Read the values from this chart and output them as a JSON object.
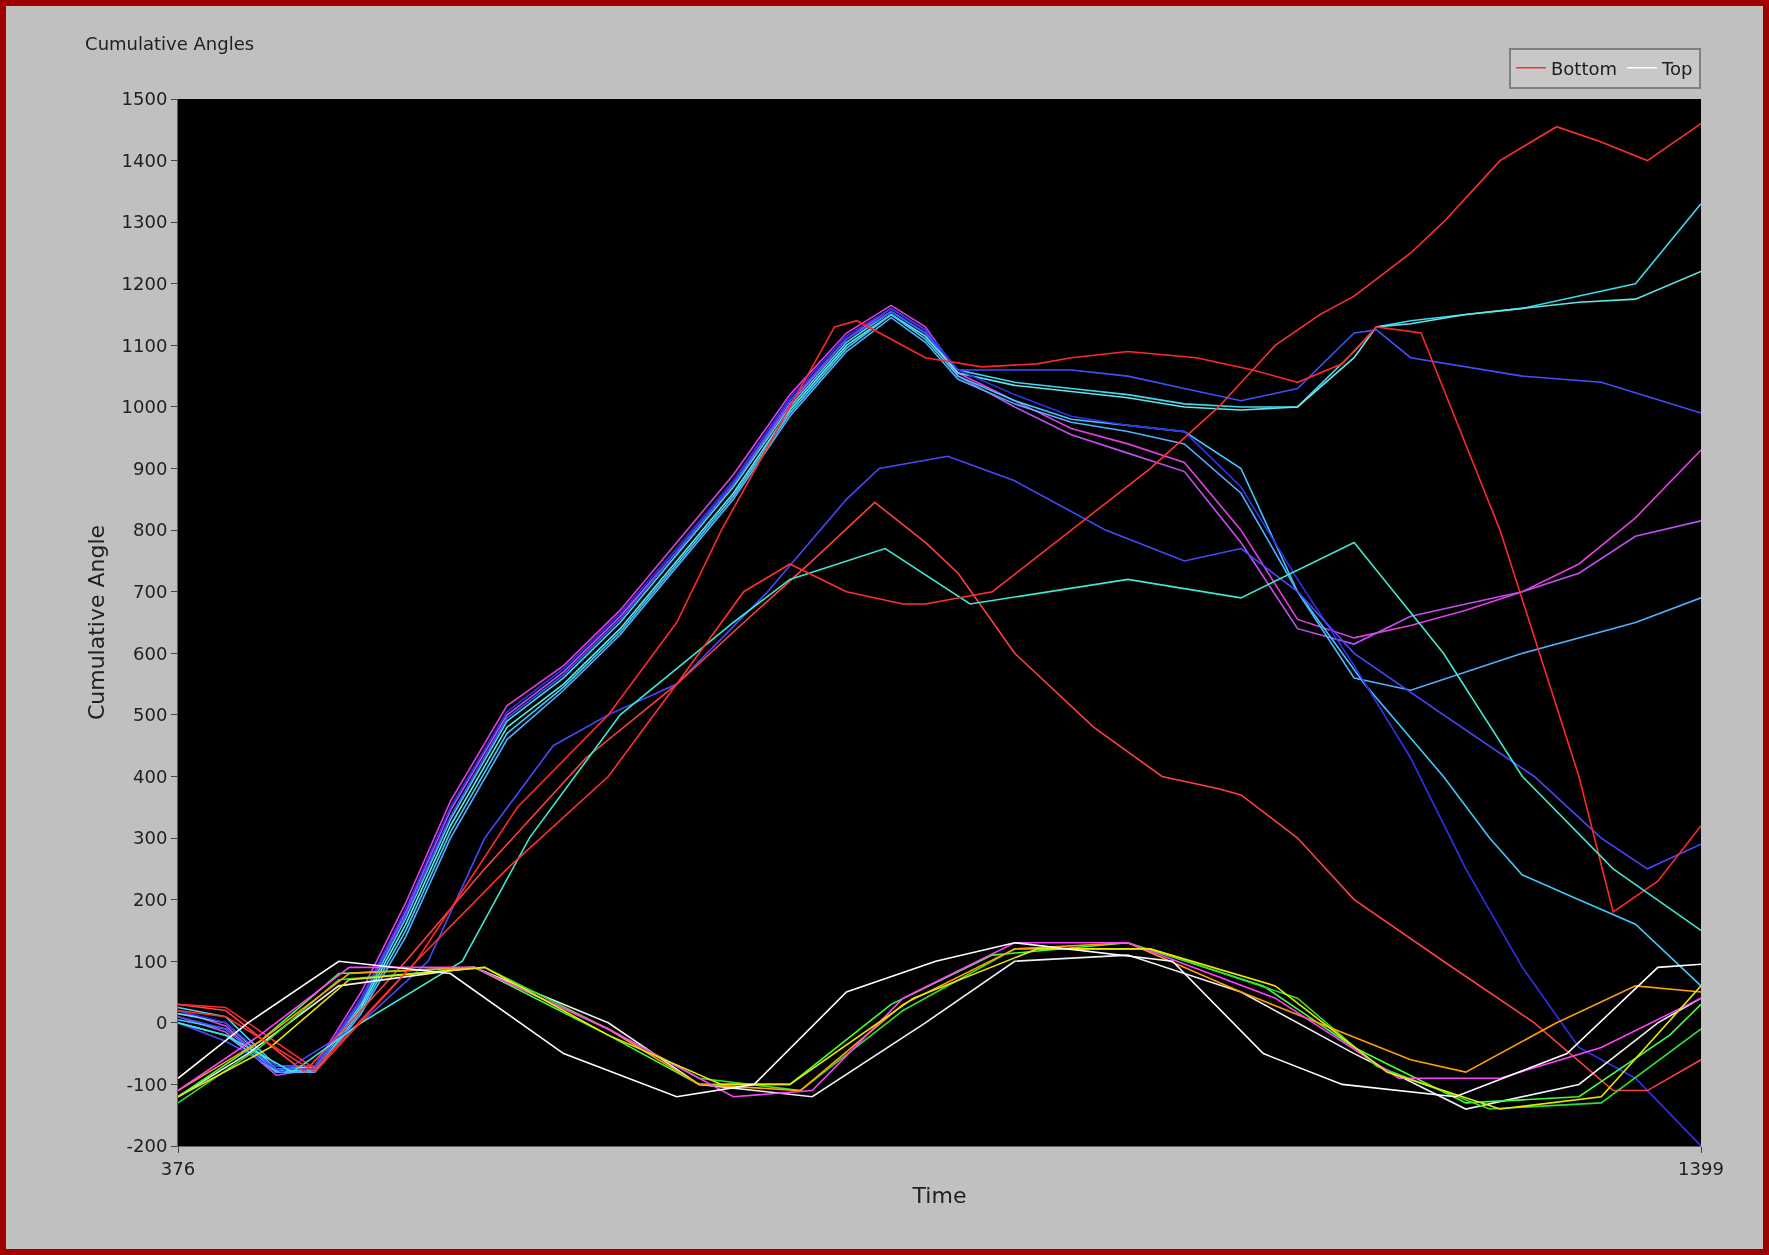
{
  "chart_data": {
    "type": "line",
    "title": "Cumulative Angles",
    "xlabel": "Time",
    "ylabel": "Cumulative Angle",
    "xlim": [
      376,
      1399
    ],
    "xticks": [
      376,
      1399
    ],
    "ylim": [
      -200,
      1500
    ],
    "yticks": [
      -200,
      -100,
      0,
      100,
      200,
      300,
      400,
      500,
      600,
      700,
      800,
      900,
      1000,
      1100,
      1200,
      1300,
      1400,
      1500
    ],
    "grid": false,
    "legend": "top right",
    "series": [
      {
        "color": "#e040e0",
        "x": [
          376,
          408,
          442,
          468,
          499,
          529,
          559,
          597,
          635,
          673,
          711,
          749,
          787,
          825,
          855,
          878,
          900,
          938,
          976,
          1014,
          1052,
          1090,
          1128,
          1166,
          1204,
          1241,
          1279,
          1317,
          1355,
          1399
        ],
        "values": [
          20,
          -5,
          -80,
          -70,
          50,
          195,
          360,
          515,
          580,
          670,
          780,
          890,
          1020,
          1120,
          1165,
          1130,
          1055,
          1010,
          965,
          940,
          910,
          800,
          655,
          625,
          645,
          670,
          700,
          745,
          820,
          930
        ]
      },
      {
        "color": "#c050f0",
        "x": [
          376,
          408,
          442,
          468,
          499,
          529,
          559,
          597,
          635,
          673,
          711,
          749,
          787,
          825,
          855,
          878,
          900,
          938,
          976,
          1014,
          1052,
          1090,
          1128,
          1166,
          1204,
          1241,
          1279,
          1317,
          1355,
          1399
        ],
        "values": [
          10,
          -15,
          -85,
          -75,
          40,
          180,
          345,
          500,
          570,
          660,
          765,
          875,
          1005,
          1110,
          1160,
          1125,
          1050,
          1000,
          955,
          925,
          895,
          780,
          640,
          615,
          660,
          680,
          700,
          730,
          790,
          815
        ]
      },
      {
        "color": "#40d8f0",
        "x": [
          376,
          408,
          442,
          468,
          499,
          529,
          559,
          597,
          635,
          673,
          711,
          749,
          787,
          825,
          855,
          878,
          900,
          938,
          976,
          1014,
          1052,
          1090,
          1128,
          1166,
          1181,
          1204,
          1241,
          1279,
          1317,
          1355,
          1399
        ],
        "values": [
          25,
          10,
          -70,
          -70,
          30,
          170,
          330,
          490,
          560,
          650,
          760,
          870,
          1000,
          1105,
          1155,
          1120,
          1060,
          1040,
          1030,
          1020,
          1005,
          1000,
          1000,
          1090,
          1130,
          1140,
          1150,
          1160,
          1180,
          1200,
          1330
        ]
      },
      {
        "color": "#60e8e8",
        "x": [
          376,
          408,
          442,
          468,
          499,
          529,
          559,
          597,
          635,
          673,
          711,
          749,
          787,
          825,
          855,
          878,
          900,
          938,
          976,
          1014,
          1052,
          1090,
          1128,
          1166,
          1181,
          1204,
          1241,
          1279,
          1317,
          1355,
          1399
        ],
        "values": [
          15,
          0,
          -75,
          -72,
          25,
          160,
          320,
          480,
          550,
          640,
          750,
          860,
          995,
          1100,
          1150,
          1115,
          1055,
          1035,
          1025,
          1015,
          1000,
          995,
          1000,
          1080,
          1130,
          1135,
          1150,
          1160,
          1170,
          1175,
          1220
        ]
      },
      {
        "color": "#40c8ff",
        "x": [
          376,
          408,
          442,
          468,
          499,
          529,
          559,
          597,
          635,
          673,
          711,
          749,
          787,
          825,
          855,
          878,
          900,
          938,
          976,
          1014,
          1052,
          1090,
          1128,
          1173,
          1226,
          1257,
          1279,
          1317,
          1355,
          1399
        ],
        "values": [
          5,
          -10,
          -78,
          -78,
          20,
          150,
          310,
          470,
          545,
          635,
          745,
          855,
          990,
          1095,
          1150,
          1110,
          1050,
          1010,
          980,
          970,
          960,
          900,
          700,
          550,
          400,
          300,
          240,
          200,
          160,
          60
        ]
      },
      {
        "color": "#50b0ff",
        "x": [
          376,
          408,
          442,
          468,
          499,
          529,
          559,
          597,
          635,
          673,
          711,
          749,
          787,
          825,
          855,
          878,
          900,
          938,
          976,
          1014,
          1052,
          1090,
          1128,
          1166,
          1204,
          1279,
          1355,
          1399
        ],
        "values": [
          0,
          -20,
          -80,
          -80,
          15,
          140,
          300,
          460,
          540,
          630,
          740,
          850,
          985,
          1090,
          1145,
          1105,
          1045,
          1005,
          975,
          960,
          940,
          860,
          700,
          560,
          540,
          600,
          650,
          690
        ]
      },
      {
        "color": "#4050ff",
        "x": [
          376,
          408,
          442,
          468,
          499,
          529,
          559,
          597,
          635,
          673,
          711,
          749,
          787,
          825,
          855,
          878,
          900,
          938,
          976,
          1014,
          1052,
          1090,
          1128,
          1166,
          1181,
          1204,
          1279,
          1332,
          1399
        ],
        "values": [
          10,
          -10,
          -75,
          -75,
          35,
          175,
          335,
          495,
          565,
          655,
          765,
          875,
          1010,
          1110,
          1155,
          1120,
          1060,
          1060,
          1060,
          1050,
          1030,
          1010,
          1030,
          1120,
          1125,
          1080,
          1050,
          1040,
          990
        ]
      },
      {
        "color": "#3030f0",
        "x": [
          376,
          408,
          442,
          468,
          499,
          529,
          559,
          597,
          635,
          673,
          711,
          749,
          787,
          825,
          855,
          878,
          900,
          938,
          976,
          1014,
          1052,
          1090,
          1128,
          1166,
          1204,
          1241,
          1279,
          1317,
          1355,
          1399
        ],
        "values": [
          20,
          0,
          -70,
          -70,
          40,
          185,
          350,
          505,
          575,
          665,
          770,
          880,
          1015,
          1115,
          1160,
          1125,
          1060,
          1020,
          985,
          970,
          960,
          870,
          720,
          580,
          430,
          250,
          90,
          -40,
          -90,
          -200
        ]
      },
      {
        "color": "#4848ff",
        "x": [
          376,
          408,
          446,
          499,
          544,
          582,
          628,
          665,
          711,
          772,
          825,
          847,
          893,
          938,
          999,
          1052,
          1090,
          1128,
          1166,
          1226,
          1287,
          1332,
          1363,
          1399
        ],
        "values": [
          0,
          -30,
          -80,
          0,
          100,
          300,
          450,
          500,
          550,
          700,
          850,
          900,
          920,
          880,
          800,
          750,
          770,
          700,
          600,
          500,
          400,
          300,
          250,
          290
        ]
      },
      {
        "name": "Bottom",
        "color": "#ff3030",
        "x": [
          376,
          408,
          468,
          536,
          597,
          665,
          711,
          756,
          787,
          825,
          863,
          878,
          923,
          976,
          1029,
          1075,
          1113,
          1143,
          1166,
          1204,
          1226,
          1264,
          1302,
          1332,
          1363,
          1399
        ],
        "values": [
          20,
          10,
          -80,
          100,
          250,
          400,
          550,
          700,
          745,
          700,
          680,
          680,
          700,
          800,
          900,
          1000,
          1100,
          1150,
          1180,
          1250,
          1300,
          1400,
          1455,
          1430,
          1400,
          1460
        ]
      },
      {
        "color": "#ff4040",
        "x": [
          376,
          408,
          461,
          529,
          582,
          650,
          711,
          756,
          802,
          844,
          878,
          900,
          938,
          991,
          1037,
          1075,
          1090,
          1128,
          1166,
          1226,
          1287,
          1340,
          1363,
          1399
        ],
        "values": [
          30,
          20,
          -80,
          100,
          250,
          430,
          550,
          650,
          750,
          845,
          780,
          730,
          600,
          480,
          400,
          380,
          370,
          300,
          200,
          100,
          0,
          -110,
          -110,
          -60
        ]
      },
      {
        "color": "#ff2828",
        "x": [
          376,
          408,
          468,
          536,
          604,
          665,
          711,
          741,
          787,
          817,
          832,
          878,
          916,
          953,
          976,
          1014,
          1060,
          1098,
          1128,
          1158,
          1181,
          1211,
          1264,
          1317,
          1340,
          1370,
          1399
        ],
        "values": [
          30,
          25,
          -75,
          100,
          350,
          500,
          650,
          800,
          1000,
          1130,
          1140,
          1080,
          1065,
          1070,
          1080,
          1090,
          1080,
          1060,
          1040,
          1070,
          1130,
          1120,
          800,
          400,
          180,
          230,
          320
        ]
      },
      {
        "color": "#40e8d0",
        "x": [
          376,
          408,
          453,
          499,
          567,
          612,
          673,
          749,
          787,
          851,
          908,
          1014,
          1090,
          1166,
          1226,
          1279,
          1340,
          1399
        ],
        "values": [
          0,
          -20,
          -80,
          0,
          100,
          300,
          500,
          650,
          720,
          770,
          680,
          720,
          690,
          780,
          600,
          400,
          250,
          150
        ]
      },
      {
        "name": "Top",
        "color": "#ffffff",
        "x": [
          376,
          423,
          484,
          559,
          635,
          711,
          763,
          825,
          885,
          938,
          1044,
          1105,
          1158,
          1234,
          1309,
          1370,
          1399
        ],
        "values": [
          -90,
          0,
          100,
          80,
          -50,
          -120,
          -100,
          50,
          100,
          130,
          100,
          -50,
          -100,
          -120,
          -50,
          90,
          95
        ]
      },
      {
        "color": "#f0f0f0",
        "x": [
          376,
          423,
          484,
          575,
          665,
          726,
          802,
          878,
          938,
          1014,
          1090,
          1166,
          1241,
          1317,
          1370,
          1399
        ],
        "values": [
          -120,
          -50,
          60,
          90,
          0,
          -100,
          -120,
          0,
          100,
          110,
          50,
          -50,
          -140,
          -100,
          0,
          40
        ]
      },
      {
        "color": "#40ff40",
        "x": [
          376,
          431,
          484,
          575,
          665,
          726,
          787,
          855,
          923,
          1014,
          1105,
          1166,
          1241,
          1317,
          1378,
          1399
        ],
        "values": [
          -120,
          -30,
          80,
          90,
          -20,
          -100,
          -100,
          30,
          110,
          130,
          60,
          -40,
          -130,
          -120,
          -20,
          30
        ]
      },
      {
        "color": "#30e030",
        "x": [
          376,
          431,
          484,
          582,
          665,
          726,
          794,
          863,
          938,
          1029,
          1128,
          1181,
          1257,
          1332,
          1399
        ],
        "values": [
          -130,
          -40,
          70,
          90,
          -10,
          -90,
          -110,
          20,
          120,
          120,
          40,
          -70,
          -140,
          -130,
          -10
        ]
      },
      {
        "color": "#ffa000",
        "x": [
          376,
          431,
          491,
          575,
          665,
          726,
          794,
          863,
          938,
          1014,
          1090,
          1204,
          1241,
          1302,
          1355,
          1399
        ],
        "values": [
          -110,
          -30,
          80,
          90,
          -10,
          -100,
          -110,
          30,
          120,
          130,
          50,
          -60,
          -80,
          0,
          60,
          50
        ]
      },
      {
        "color": "#ff40ff",
        "x": [
          376,
          431,
          491,
          575,
          665,
          749,
          802,
          863,
          938,
          1014,
          1113,
          1196,
          1264,
          1332,
          1399
        ],
        "values": [
          -110,
          -20,
          90,
          90,
          -10,
          -120,
          -110,
          40,
          130,
          130,
          40,
          -90,
          -90,
          -40,
          40
        ]
      },
      {
        "color": "#e8e800",
        "x": [
          376,
          438,
          491,
          582,
          665,
          741,
          787,
          870,
          953,
          1029,
          1113,
          1188,
          1264,
          1332,
          1399
        ],
        "values": [
          -120,
          -40,
          70,
          90,
          -20,
          -100,
          -100,
          40,
          120,
          120,
          60,
          -80,
          -140,
          -120,
          60
        ]
      }
    ]
  }
}
